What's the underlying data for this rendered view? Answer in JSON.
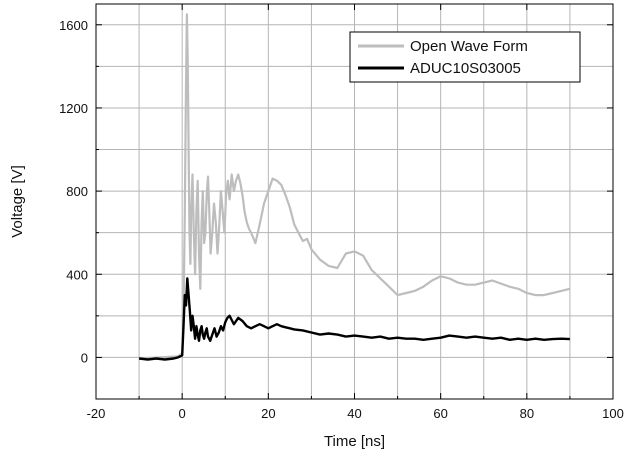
{
  "chart_data": {
    "type": "line",
    "title": "",
    "xlabel": "Time [ns]",
    "ylabel": "Voltage [V]",
    "xlim": [
      -20,
      100
    ],
    "ylim": [
      -200,
      1700
    ],
    "xticks": [
      -20,
      0,
      20,
      40,
      60,
      80,
      100
    ],
    "yticks": [
      0,
      400,
      800,
      1200,
      1600
    ],
    "grid": true,
    "legend_position": "top-right",
    "series": [
      {
        "name": "Open Wave Form",
        "color": "#bdbdbd",
        "x": [
          -10,
          -5,
          -1,
          0,
          0.3,
          0.6,
          0.9,
          1.1,
          1.3,
          1.5,
          1.7,
          1.9,
          2.1,
          2.4,
          2.7,
          3.0,
          3.3,
          3.6,
          3.9,
          4.2,
          4.5,
          4.8,
          5.1,
          5.4,
          5.7,
          6.0,
          6.3,
          6.6,
          7.0,
          7.4,
          7.8,
          8.2,
          8.6,
          9.0,
          9.4,
          9.8,
          10.2,
          10.6,
          11,
          11.5,
          12,
          12.5,
          13,
          13.5,
          14,
          14.5,
          15,
          15.5,
          16,
          17,
          18,
          19,
          20,
          21,
          22,
          23,
          24,
          25,
          26,
          27,
          28,
          29,
          30,
          32,
          34,
          36,
          38,
          40,
          42,
          44,
          46,
          48,
          50,
          52,
          54,
          56,
          58,
          60,
          62,
          64,
          66,
          68,
          70,
          72,
          74,
          76,
          78,
          80,
          82,
          84,
          86,
          88,
          90
        ],
        "values": [
          -5,
          0,
          5,
          20,
          200,
          700,
          1300,
          1650,
          1400,
          1000,
          600,
          450,
          700,
          880,
          600,
          400,
          700,
          850,
          500,
          330,
          650,
          800,
          550,
          600,
          780,
          870,
          700,
          500,
          600,
          740,
          650,
          500,
          630,
          800,
          700,
          600,
          780,
          850,
          760,
          880,
          800,
          850,
          880,
          840,
          780,
          700,
          650,
          620,
          600,
          550,
          640,
          740,
          800,
          860,
          850,
          830,
          780,
          720,
          640,
          600,
          560,
          570,
          520,
          470,
          440,
          430,
          500,
          510,
          490,
          420,
          380,
          340,
          300,
          310,
          320,
          340,
          370,
          390,
          380,
          360,
          350,
          350,
          360,
          370,
          355,
          340,
          330,
          310,
          300,
          300,
          310,
          320,
          330
        ]
      },
      {
        "name": "ADUC10S03005",
        "color": "#000000",
        "x": [
          -10,
          -8,
          -6,
          -4,
          -2,
          -1,
          0,
          0.3,
          0.6,
          0.9,
          1.2,
          1.5,
          1.8,
          2.1,
          2.4,
          2.7,
          3.0,
          3.3,
          3.6,
          3.9,
          4.2,
          4.5,
          4.8,
          5.1,
          5.4,
          5.7,
          6,
          6.5,
          7,
          7.5,
          8,
          8.5,
          9,
          9.5,
          10,
          10.5,
          11,
          11.5,
          12,
          13,
          14,
          15,
          16,
          17,
          18,
          19,
          20,
          21,
          22,
          23,
          24,
          25,
          26,
          28,
          30,
          32,
          34,
          36,
          38,
          40,
          42,
          44,
          46,
          48,
          50,
          52,
          54,
          56,
          58,
          60,
          62,
          64,
          66,
          68,
          70,
          72,
          74,
          76,
          78,
          80,
          82,
          84,
          86,
          88,
          90
        ],
        "values": [
          -5,
          -10,
          -5,
          -10,
          -5,
          0,
          10,
          150,
          300,
          250,
          380,
          300,
          220,
          130,
          200,
          150,
          90,
          150,
          110,
          80,
          130,
          150,
          110,
          90,
          120,
          140,
          100,
          80,
          110,
          140,
          100,
          120,
          150,
          130,
          170,
          190,
          200,
          180,
          160,
          190,
          175,
          150,
          140,
          150,
          160,
          150,
          140,
          150,
          160,
          150,
          145,
          140,
          135,
          130,
          120,
          110,
          115,
          110,
          100,
          105,
          100,
          95,
          100,
          90,
          95,
          90,
          90,
          85,
          90,
          95,
          105,
          100,
          95,
          100,
          95,
          90,
          95,
          85,
          90,
          85,
          90,
          85,
          88,
          90,
          88
        ]
      }
    ]
  }
}
